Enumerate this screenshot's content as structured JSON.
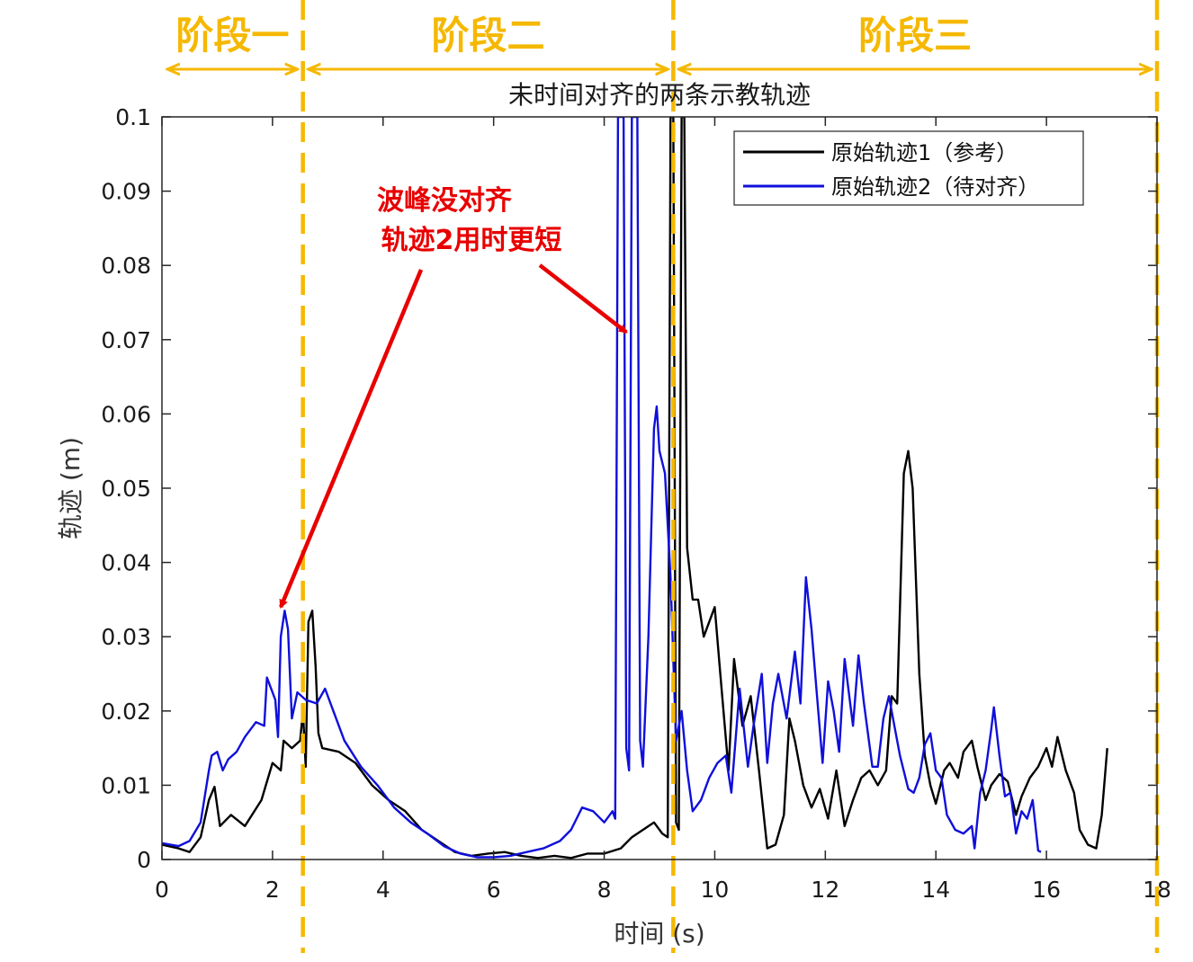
{
  "chart_data": {
    "type": "line",
    "title": "未时间对齐的两条示教轨迹",
    "xlabel": "时间 (s)",
    "ylabel": "轨迹 (m)",
    "xlim": [
      0,
      18
    ],
    "ylim": [
      0,
      0.1
    ],
    "xticks": [
      "0",
      "2",
      "4",
      "6",
      "8",
      "10",
      "12",
      "14",
      "16",
      "18"
    ],
    "yticks": [
      "0",
      "0.01",
      "0.02",
      "0.03",
      "0.04",
      "0.05",
      "0.06",
      "0.07",
      "0.08",
      "0.09",
      "0.1"
    ],
    "grid": false,
    "legend_position": "top-right",
    "series": [
      {
        "name": "原始轨迹1（参考）",
        "color": "#000000",
        "points": [
          [
            0,
            0.002
          ],
          [
            0.3,
            0.0015
          ],
          [
            0.5,
            0.001
          ],
          [
            0.7,
            0.003
          ],
          [
            0.85,
            0.008
          ],
          [
            0.95,
            0.0098
          ],
          [
            1.05,
            0.0045
          ],
          [
            1.25,
            0.006
          ],
          [
            1.5,
            0.0045
          ],
          [
            1.8,
            0.008
          ],
          [
            2.0,
            0.013
          ],
          [
            2.15,
            0.012
          ],
          [
            2.2,
            0.016
          ],
          [
            2.35,
            0.015
          ],
          [
            2.5,
            0.016
          ],
          [
            2.55,
            0.02
          ],
          [
            2.6,
            0.0125
          ],
          [
            2.65,
            0.032
          ],
          [
            2.72,
            0.0335
          ],
          [
            2.78,
            0.026
          ],
          [
            2.83,
            0.017
          ],
          [
            2.9,
            0.015
          ],
          [
            3.2,
            0.0145
          ],
          [
            3.5,
            0.013
          ],
          [
            3.8,
            0.01
          ],
          [
            4.1,
            0.008
          ],
          [
            4.4,
            0.0065
          ],
          [
            4.7,
            0.004
          ],
          [
            5.0,
            0.0025
          ],
          [
            5.3,
            0.001
          ],
          [
            5.6,
            0.0005
          ],
          [
            5.9,
            0.0008
          ],
          [
            6.2,
            0.001
          ],
          [
            6.5,
            0.0005
          ],
          [
            6.8,
            0.0002
          ],
          [
            7.1,
            0.0005
          ],
          [
            7.4,
            0.0002
          ],
          [
            7.7,
            0.0008
          ],
          [
            8.0,
            0.0008
          ],
          [
            8.3,
            0.0015
          ],
          [
            8.5,
            0.003
          ],
          [
            8.7,
            0.004
          ],
          [
            8.9,
            0.005
          ],
          [
            9.05,
            0.0035
          ],
          [
            9.15,
            0.003
          ],
          [
            9.2,
            0.1
          ],
          [
            9.25,
            0.1
          ],
          [
            9.3,
            0.005
          ],
          [
            9.35,
            0.004
          ],
          [
            9.4,
            0.1
          ],
          [
            9.45,
            0.1
          ],
          [
            9.5,
            0.042
          ],
          [
            9.6,
            0.035
          ],
          [
            9.7,
            0.035
          ],
          [
            9.8,
            0.03
          ],
          [
            9.9,
            0.032
          ],
          [
            10.0,
            0.034
          ],
          [
            10.1,
            0.025
          ],
          [
            10.25,
            0.012
          ],
          [
            10.35,
            0.027
          ],
          [
            10.5,
            0.018
          ],
          [
            10.65,
            0.022
          ],
          [
            10.8,
            0.012
          ],
          [
            10.95,
            0.0015
          ],
          [
            11.1,
            0.002
          ],
          [
            11.25,
            0.006
          ],
          [
            11.35,
            0.019
          ],
          [
            11.45,
            0.016
          ],
          [
            11.6,
            0.01
          ],
          [
            11.75,
            0.007
          ],
          [
            11.9,
            0.0095
          ],
          [
            12.05,
            0.0055
          ],
          [
            12.2,
            0.012
          ],
          [
            12.35,
            0.0045
          ],
          [
            12.5,
            0.008
          ],
          [
            12.65,
            0.011
          ],
          [
            12.8,
            0.012
          ],
          [
            12.95,
            0.01
          ],
          [
            13.1,
            0.012
          ],
          [
            13.2,
            0.022
          ],
          [
            13.3,
            0.021
          ],
          [
            13.42,
            0.052
          ],
          [
            13.5,
            0.055
          ],
          [
            13.58,
            0.05
          ],
          [
            13.7,
            0.025
          ],
          [
            13.8,
            0.014
          ],
          [
            13.9,
            0.01
          ],
          [
            14.0,
            0.0075
          ],
          [
            14.15,
            0.012
          ],
          [
            14.25,
            0.013
          ],
          [
            14.4,
            0.011
          ],
          [
            14.5,
            0.0145
          ],
          [
            14.65,
            0.016
          ],
          [
            14.75,
            0.0125
          ],
          [
            14.9,
            0.008
          ],
          [
            15.0,
            0.01
          ],
          [
            15.15,
            0.0115
          ],
          [
            15.3,
            0.0105
          ],
          [
            15.45,
            0.006
          ],
          [
            15.55,
            0.0085
          ],
          [
            15.7,
            0.011
          ],
          [
            15.85,
            0.0125
          ],
          [
            16.0,
            0.015
          ],
          [
            16.1,
            0.0125
          ],
          [
            16.2,
            0.0165
          ],
          [
            16.35,
            0.012
          ],
          [
            16.5,
            0.009
          ],
          [
            16.6,
            0.004
          ],
          [
            16.75,
            0.002
          ],
          [
            16.9,
            0.0015
          ],
          [
            17.0,
            0.006
          ],
          [
            17.1,
            0.015
          ]
        ]
      },
      {
        "name": "原始轨迹2（待对齐）",
        "color": "#0f0fdc",
        "points": [
          [
            0,
            0.0022
          ],
          [
            0.3,
            0.0018
          ],
          [
            0.5,
            0.0025
          ],
          [
            0.7,
            0.005
          ],
          [
            0.85,
            0.012
          ],
          [
            0.9,
            0.014
          ],
          [
            1.0,
            0.0145
          ],
          [
            1.1,
            0.012
          ],
          [
            1.2,
            0.0135
          ],
          [
            1.35,
            0.0145
          ],
          [
            1.5,
            0.0165
          ],
          [
            1.7,
            0.0185
          ],
          [
            1.85,
            0.018
          ],
          [
            1.9,
            0.0245
          ],
          [
            2.0,
            0.0225
          ],
          [
            2.05,
            0.0215
          ],
          [
            2.1,
            0.0165
          ],
          [
            2.15,
            0.03
          ],
          [
            2.22,
            0.0335
          ],
          [
            2.28,
            0.031
          ],
          [
            2.35,
            0.019
          ],
          [
            2.45,
            0.0225
          ],
          [
            2.6,
            0.0215
          ],
          [
            2.8,
            0.021
          ],
          [
            2.95,
            0.023
          ],
          [
            3.1,
            0.02
          ],
          [
            3.3,
            0.016
          ],
          [
            3.6,
            0.0125
          ],
          [
            3.9,
            0.01
          ],
          [
            4.2,
            0.007
          ],
          [
            4.5,
            0.005
          ],
          [
            4.8,
            0.0035
          ],
          [
            5.1,
            0.0018
          ],
          [
            5.4,
            0.0008
          ],
          [
            5.7,
            0.0003
          ],
          [
            6.0,
            0.0003
          ],
          [
            6.3,
            0.0005
          ],
          [
            6.6,
            0.001
          ],
          [
            6.9,
            0.0015
          ],
          [
            7.2,
            0.0025
          ],
          [
            7.4,
            0.004
          ],
          [
            7.6,
            0.007
          ],
          [
            7.8,
            0.0065
          ],
          [
            8.0,
            0.005
          ],
          [
            8.15,
            0.0065
          ],
          [
            8.2,
            0.0055
          ],
          [
            8.25,
            0.1
          ],
          [
            8.35,
            0.1
          ],
          [
            8.4,
            0.015
          ],
          [
            8.45,
            0.012
          ],
          [
            8.5,
            0.1
          ],
          [
            8.6,
            0.1
          ],
          [
            8.65,
            0.016
          ],
          [
            8.7,
            0.0125
          ],
          [
            8.8,
            0.03
          ],
          [
            8.9,
            0.058
          ],
          [
            8.95,
            0.061
          ],
          [
            9.0,
            0.055
          ],
          [
            9.1,
            0.052
          ],
          [
            9.2,
            0.038
          ],
          [
            9.3,
            0.016
          ],
          [
            9.4,
            0.02
          ],
          [
            9.5,
            0.012
          ],
          [
            9.6,
            0.0065
          ],
          [
            9.75,
            0.008
          ],
          [
            9.9,
            0.011
          ],
          [
            10.05,
            0.013
          ],
          [
            10.2,
            0.014
          ],
          [
            10.3,
            0.009
          ],
          [
            10.45,
            0.023
          ],
          [
            10.6,
            0.0125
          ],
          [
            10.7,
            0.018
          ],
          [
            10.85,
            0.025
          ],
          [
            10.95,
            0.013
          ],
          [
            11.05,
            0.021
          ],
          [
            11.15,
            0.025
          ],
          [
            11.3,
            0.019
          ],
          [
            11.45,
            0.028
          ],
          [
            11.55,
            0.021
          ],
          [
            11.65,
            0.038
          ],
          [
            11.75,
            0.031
          ],
          [
            11.85,
            0.022
          ],
          [
            11.95,
            0.013
          ],
          [
            12.05,
            0.024
          ],
          [
            12.15,
            0.02
          ],
          [
            12.25,
            0.0145
          ],
          [
            12.35,
            0.027
          ],
          [
            12.5,
            0.018
          ],
          [
            12.6,
            0.0275
          ],
          [
            12.7,
            0.021
          ],
          [
            12.85,
            0.0125
          ],
          [
            12.95,
            0.0125
          ],
          [
            13.05,
            0.019
          ],
          [
            13.15,
            0.022
          ],
          [
            13.25,
            0.018
          ],
          [
            13.35,
            0.014
          ],
          [
            13.5,
            0.0095
          ],
          [
            13.6,
            0.009
          ],
          [
            13.7,
            0.011
          ],
          [
            13.8,
            0.0155
          ],
          [
            13.9,
            0.017
          ],
          [
            14.0,
            0.012
          ],
          [
            14.1,
            0.011
          ],
          [
            14.2,
            0.006
          ],
          [
            14.35,
            0.004
          ],
          [
            14.5,
            0.0035
          ],
          [
            14.65,
            0.0045
          ],
          [
            14.7,
            0.0015
          ],
          [
            14.8,
            0.009
          ],
          [
            14.9,
            0.012
          ],
          [
            15.0,
            0.0175
          ],
          [
            15.05,
            0.0205
          ],
          [
            15.15,
            0.014
          ],
          [
            15.25,
            0.0085
          ],
          [
            15.35,
            0.009
          ],
          [
            15.45,
            0.0035
          ],
          [
            15.55,
            0.0065
          ],
          [
            15.65,
            0.0055
          ],
          [
            15.75,
            0.008
          ],
          [
            15.85,
            0.0012
          ],
          [
            15.9,
            0.001
          ]
        ]
      }
    ],
    "stages": [
      {
        "label": "阶段一",
        "x_start": 0,
        "x_end": 2.55
      },
      {
        "label": "阶段二",
        "x_start": 2.55,
        "x_end": 9.25
      },
      {
        "label": "阶段三",
        "x_start": 9.25,
        "x_end": 18
      }
    ],
    "stage_color": "#f5b800",
    "annotation": {
      "lines": [
        "波峰没对齐",
        "轨迹2用时更短"
      ],
      "color": "#e80000",
      "arrow_targets": [
        [
          2.15,
          0.034
        ],
        [
          8.4,
          0.071
        ]
      ]
    }
  }
}
